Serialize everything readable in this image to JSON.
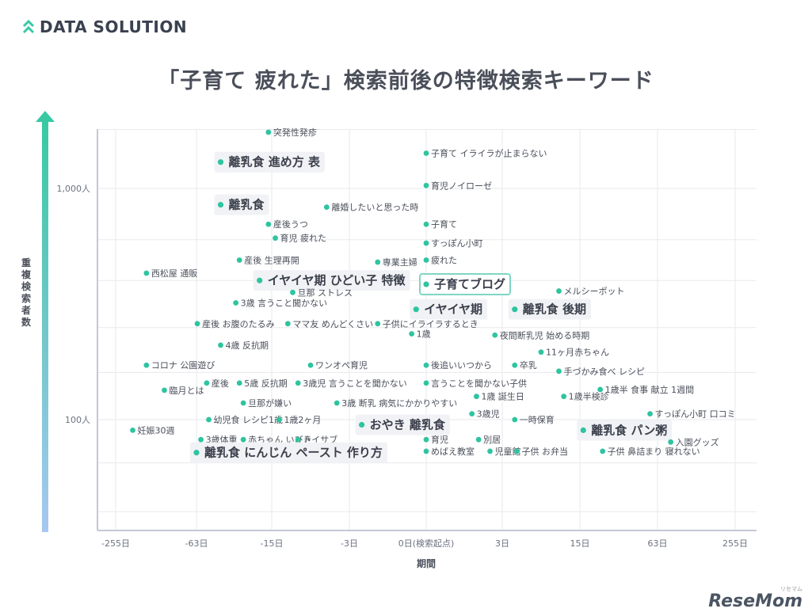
{
  "brand": {
    "name": "DATA SOLUTION",
    "icon": "double-chevron-up-icon",
    "color": "#3cc8a8"
  },
  "title": "「子育て 疲れた」検索前後の特徴検索キーワード",
  "watermark": {
    "main": "ReseMom",
    "sub": "リセマム"
  },
  "colors": {
    "dot": "#2ec4a0",
    "grid": "#e8eaee",
    "axis": "#c5c8d4",
    "highlight_border": "#7fd6c3",
    "big_bg": "#f1f2f5"
  },
  "chart_data": {
    "type": "scatter",
    "title": "「子育て 疲れた」検索前後の特徴検索キーワード",
    "xlabel": "期間",
    "ylabel": "重複検索者数",
    "x_scale": "symlog",
    "y_scale": "log",
    "x_ticks": [
      {
        "value": -255,
        "label": "-255日"
      },
      {
        "value": -63,
        "label": "-63日"
      },
      {
        "value": -15,
        "label": "-15日"
      },
      {
        "value": -3,
        "label": "-3日"
      },
      {
        "value": 0,
        "label": "0日(検索起点)"
      },
      {
        "value": 3,
        "label": "3日"
      },
      {
        "value": 15,
        "label": "15日"
      },
      {
        "value": 63,
        "label": "63日"
      },
      {
        "value": 255,
        "label": "255日"
      }
    ],
    "y_ticks": [
      {
        "value": 1000,
        "label": "1,000人"
      },
      {
        "value": 100,
        "label": "100人"
      }
    ],
    "points": [
      {
        "label": "突発性発疹",
        "x": -16,
        "y": 1750,
        "size": "small"
      },
      {
        "label": "離乳食 進め方 表",
        "x": -40,
        "y": 1300,
        "size": "big"
      },
      {
        "label": "子育て イライラが止まらない",
        "x": 0,
        "y": 1420,
        "size": "small"
      },
      {
        "label": "育児ノイローゼ",
        "x": 0,
        "y": 1030,
        "size": "small"
      },
      {
        "label": "離乳食",
        "x": -40,
        "y": 850,
        "size": "big"
      },
      {
        "label": "離婚したいと思った時",
        "x": -5,
        "y": 830,
        "size": "small"
      },
      {
        "label": "産後うつ",
        "x": -16,
        "y": 700,
        "size": "small"
      },
      {
        "label": "子育て",
        "x": 0,
        "y": 700,
        "size": "small"
      },
      {
        "label": "育児 疲れた",
        "x": -14,
        "y": 610,
        "size": "small"
      },
      {
        "label": "すっぽん小町",
        "x": 0,
        "y": 580,
        "size": "small"
      },
      {
        "label": "産後 生理再開",
        "x": -28,
        "y": 490,
        "size": "small"
      },
      {
        "label": "専業主婦",
        "x": -1.4,
        "y": 480,
        "size": "small"
      },
      {
        "label": "疲れた",
        "x": 0,
        "y": 490,
        "size": "small"
      },
      {
        "label": "西松屋 通販",
        "x": -150,
        "y": 430,
        "size": "small"
      },
      {
        "label": "イヤイヤ期 ひどい子 特徴",
        "x": -19,
        "y": 400,
        "size": "big"
      },
      {
        "label": "子育てブログ",
        "x": 0,
        "y": 385,
        "size": "big",
        "highlight": true
      },
      {
        "label": "メルシーポット",
        "x": 10,
        "y": 360,
        "size": "small"
      },
      {
        "label": "旦那 ストレス",
        "x": -10,
        "y": 355,
        "size": "small"
      },
      {
        "label": "3歳 言うこと聞かない",
        "x": -30,
        "y": 320,
        "size": "small"
      },
      {
        "label": "イヤイヤ期",
        "x": -0.2,
        "y": 300,
        "size": "big"
      },
      {
        "label": "離乳食 後期",
        "x": 4,
        "y": 300,
        "size": "big"
      },
      {
        "label": "産後 お腹のたるみ",
        "x": -62,
        "y": 260,
        "size": "small"
      },
      {
        "label": "ママ友 めんどくさい",
        "x": -11,
        "y": 260,
        "size": "small"
      },
      {
        "label": "子供にイライラするとき",
        "x": -1.4,
        "y": 260,
        "size": "small"
      },
      {
        "label": "1歳",
        "x": -0.3,
        "y": 235,
        "size": "small"
      },
      {
        "label": "夜間断乳児 始める時期",
        "x": 2.5,
        "y": 232,
        "size": "small"
      },
      {
        "label": "4歳 反抗期",
        "x": -40,
        "y": 210,
        "size": "small"
      },
      {
        "label": "11ヶ月赤ちゃん",
        "x": 7,
        "y": 196,
        "size": "small"
      },
      {
        "label": "コロナ 公園遊び",
        "x": -150,
        "y": 172,
        "size": "small"
      },
      {
        "label": "ワンオペ育児",
        "x": -7,
        "y": 172,
        "size": "small"
      },
      {
        "label": "後追いいつから",
        "x": 0,
        "y": 172,
        "size": "small"
      },
      {
        "label": "卒乳",
        "x": 4,
        "y": 172,
        "size": "small"
      },
      {
        "label": "手づかみ食べ レシピ",
        "x": 10,
        "y": 162,
        "size": "small"
      },
      {
        "label": "産後",
        "x": -52,
        "y": 144,
        "size": "small"
      },
      {
        "label": "5歳 反抗期",
        "x": -28,
        "y": 144,
        "size": "small"
      },
      {
        "label": "3歳児 言うことを聞かない",
        "x": -9,
        "y": 144,
        "size": "small"
      },
      {
        "label": "言うことを聞かない子供",
        "x": 0,
        "y": 144,
        "size": "small"
      },
      {
        "label": "臨月とは",
        "x": -110,
        "y": 134,
        "size": "small"
      },
      {
        "label": "1歳半 食事 献立 1週間",
        "x": 22,
        "y": 135,
        "size": "small"
      },
      {
        "label": "1歳 誕生日",
        "x": 1.5,
        "y": 126,
        "size": "small"
      },
      {
        "label": "1歳半検診",
        "x": 11,
        "y": 126,
        "size": "small"
      },
      {
        "label": "旦那が嫌い",
        "x": -26,
        "y": 118,
        "size": "small"
      },
      {
        "label": "3歳 断乳 病気にかかりやすい",
        "x": -4,
        "y": 118,
        "size": "small"
      },
      {
        "label": "3歳児",
        "x": 1.3,
        "y": 106,
        "size": "small"
      },
      {
        "label": "すっぽん小町 口コミ",
        "x": 55,
        "y": 106,
        "size": "small"
      },
      {
        "label": "幼児食 レシピ1歳",
        "x": -50,
        "y": 100,
        "size": "small"
      },
      {
        "label": "1歳2ヶ月",
        "x": -13,
        "y": 100,
        "size": "small"
      },
      {
        "label": "一時保育",
        "x": 4,
        "y": 100,
        "size": "small"
      },
      {
        "label": "おやき 離乳食",
        "x": -2.2,
        "y": 95,
        "size": "big"
      },
      {
        "label": "妊娠30週",
        "x": -190,
        "y": 90,
        "size": "small"
      },
      {
        "label": "離乳食 パン粥",
        "x": 16,
        "y": 90,
        "size": "big"
      },
      {
        "label": "3歳体重",
        "x": -58,
        "y": 82,
        "size": "small"
      },
      {
        "label": "赤ちゃん いびき",
        "x": -26,
        "y": 82,
        "size": "small"
      },
      {
        "label": "トイサブ",
        "x": -9,
        "y": 82,
        "size": "small"
      },
      {
        "label": "育児",
        "x": 0,
        "y": 82,
        "size": "small"
      },
      {
        "label": "別居",
        "x": 1.6,
        "y": 82,
        "size": "small"
      },
      {
        "label": "入園グッズ",
        "x": 80,
        "y": 80,
        "size": "small"
      },
      {
        "label": "離乳食 にんじん ペースト 作り方",
        "x": -63,
        "y": 72,
        "size": "big"
      },
      {
        "label": "めばえ教室",
        "x": 0,
        "y": 73,
        "size": "small"
      },
      {
        "label": "児童館",
        "x": 2.2,
        "y": 73,
        "size": "small"
      },
      {
        "label": "子供 お弁当",
        "x": 4.2,
        "y": 73,
        "size": "small"
      },
      {
        "label": "子供 鼻詰まり 寝れない",
        "x": 23,
        "y": 73,
        "size": "small"
      }
    ]
  }
}
